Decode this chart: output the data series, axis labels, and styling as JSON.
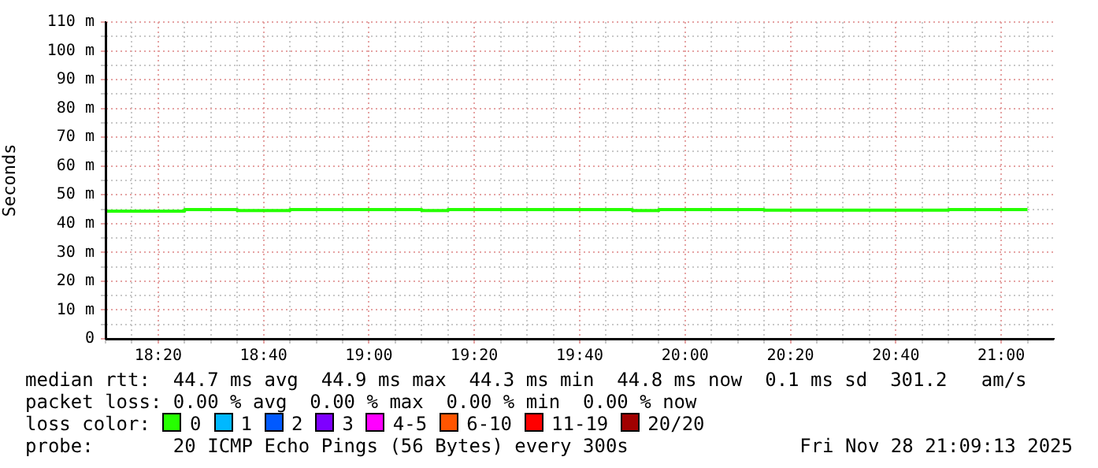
{
  "chart_data": {
    "type": "step",
    "ylabel": "Seconds",
    "legend": "bottom",
    "grid": true,
    "x": [
      18.1667,
      18.25,
      18.3333,
      18.4167,
      18.5,
      18.5833,
      18.6667,
      18.75,
      18.8333,
      18.9167,
      19,
      19.0833,
      19.1667,
      19.25,
      19.3333,
      19.4167,
      19.5,
      19.5833,
      19.6667,
      19.75,
      19.8333,
      19.9167,
      20,
      20.0833,
      20.1667,
      20.25,
      20.3333,
      20.4167,
      20.5,
      20.5833,
      20.6667,
      20.75,
      20.8333,
      20.9167,
      21,
      21.0833
    ],
    "xlim": [
      18.1667,
      21.1667
    ],
    "xticks": [
      {
        "value": 18.1667,
        "label": null
      },
      {
        "value": 18.25,
        "label": null
      },
      {
        "value": 18.3333,
        "label": "18:20"
      },
      {
        "value": 18.4167,
        "label": null
      },
      {
        "value": 18.5,
        "label": null
      },
      {
        "value": 18.5833,
        "label": null
      },
      {
        "value": 18.6667,
        "label": "18:40"
      },
      {
        "value": 18.75,
        "label": null
      },
      {
        "value": 18.8333,
        "label": null
      },
      {
        "value": 18.9167,
        "label": null
      },
      {
        "value": 19,
        "label": "19:00"
      },
      {
        "value": 19.0833,
        "label": null
      },
      {
        "value": 19.1667,
        "label": null
      },
      {
        "value": 19.25,
        "label": null
      },
      {
        "value": 19.3333,
        "label": "19:20"
      },
      {
        "value": 19.4167,
        "label": null
      },
      {
        "value": 19.5,
        "label": null
      },
      {
        "value": 19.5833,
        "label": null
      },
      {
        "value": 19.6667,
        "label": "19:40"
      },
      {
        "value": 19.75,
        "label": null
      },
      {
        "value": 19.8333,
        "label": null
      },
      {
        "value": 19.9167,
        "label": null
      },
      {
        "value": 20,
        "label": "20:00"
      },
      {
        "value": 20.0833,
        "label": null
      },
      {
        "value": 20.1667,
        "label": null
      },
      {
        "value": 20.25,
        "label": null
      },
      {
        "value": 20.3333,
        "label": "20:20"
      },
      {
        "value": 20.4167,
        "label": null
      },
      {
        "value": 20.5,
        "label": null
      },
      {
        "value": 20.5833,
        "label": null
      },
      {
        "value": 20.6667,
        "label": "20:40"
      },
      {
        "value": 20.75,
        "label": null
      },
      {
        "value": 20.8333,
        "label": null
      },
      {
        "value": 20.9167,
        "label": null
      },
      {
        "value": 21,
        "label": "21:00"
      },
      {
        "value": 21.0833,
        "label": null
      }
    ],
    "ylim": [
      0,
      110
    ],
    "yticks": [
      0,
      {
        "value": 5,
        "label": null
      },
      {
        "value": 10,
        "label": "10 m"
      },
      {
        "value": 15,
        "label": null
      },
      {
        "value": 20,
        "label": "20 m"
      },
      {
        "value": 25,
        "label": null
      },
      {
        "value": 30,
        "label": "30 m"
      },
      {
        "value": 35,
        "label": null
      },
      {
        "value": 40,
        "label": "40 m"
      },
      {
        "value": 45,
        "label": null
      },
      {
        "value": 50,
        "label": "50 m"
      },
      {
        "value": 55,
        "label": null
      },
      {
        "value": 60,
        "label": "60 m"
      },
      {
        "value": 65,
        "label": null
      },
      {
        "value": 70,
        "label": "70 m"
      },
      {
        "value": 75,
        "label": null
      },
      {
        "value": 80,
        "label": "80 m"
      },
      {
        "value": 85,
        "label": null
      },
      {
        "value": 90,
        "label": "90 m"
      },
      {
        "value": 95,
        "label": null
      },
      {
        "value": 100,
        "label": "100 m"
      },
      {
        "value": 105,
        "label": null
      },
      {
        "value": 110,
        "label": "110 m"
      }
    ],
    "series": [
      {
        "name": "0",
        "color": "#26ff00",
        "values": [
          44.3,
          44.3,
          44.3,
          44.3,
          44.9,
          44.9,
          44.5,
          44.5,
          44.9,
          44.9,
          44.9,
          44.9,
          44.9,
          44.5,
          44.9,
          44.9,
          44.9,
          44.9,
          44.9,
          44.9,
          44.9,
          44.5,
          44.9,
          44.9,
          44.9,
          44.9,
          44.7,
          44.7,
          44.7,
          44.7,
          44.7,
          44.7,
          44.7,
          44.9,
          44.9,
          44.9
        ]
      },
      {
        "name": "1",
        "color": "#00b8ff",
        "values": [
          null,
          null,
          null,
          null,
          null,
          null,
          null,
          null,
          null,
          null,
          null,
          null,
          null,
          null,
          null,
          null,
          null,
          null,
          null,
          null,
          null,
          null,
          null,
          null,
          null,
          null,
          null,
          null,
          null,
          null,
          null,
          null,
          null,
          null,
          null,
          null
        ]
      },
      {
        "name": "2",
        "color": "#0059ff",
        "values": [
          null,
          null,
          null,
          null,
          null,
          null,
          null,
          null,
          null,
          null,
          null,
          null,
          null,
          null,
          null,
          null,
          null,
          null,
          null,
          null,
          null,
          null,
          null,
          null,
          null,
          null,
          null,
          null,
          null,
          null,
          null,
          null,
          null,
          null,
          null,
          null
        ]
      },
      {
        "name": "3",
        "color": "#7e00ff",
        "values": [
          null,
          null,
          null,
          null,
          null,
          null,
          null,
          null,
          null,
          null,
          null,
          null,
          null,
          null,
          null,
          null,
          null,
          null,
          null,
          null,
          null,
          null,
          null,
          null,
          null,
          null,
          null,
          null,
          null,
          null,
          null,
          null,
          null,
          null,
          null,
          null
        ]
      },
      {
        "name": "4-5",
        "color": "#ff00ff",
        "values": [
          null,
          null,
          null,
          null,
          null,
          null,
          null,
          null,
          null,
          null,
          null,
          null,
          null,
          null,
          null,
          null,
          null,
          null,
          null,
          null,
          null,
          null,
          null,
          null,
          null,
          null,
          null,
          null,
          null,
          null,
          null,
          null,
          null,
          null,
          null,
          null
        ]
      },
      {
        "name": "6-10",
        "color": "#ff5500",
        "values": [
          null,
          null,
          null,
          null,
          null,
          null,
          null,
          null,
          null,
          null,
          null,
          null,
          null,
          null,
          null,
          null,
          null,
          null,
          null,
          null,
          null,
          null,
          null,
          null,
          null,
          null,
          null,
          null,
          null,
          null,
          null,
          null,
          null,
          null,
          null,
          null
        ]
      },
      {
        "name": "11-19",
        "color": "#ff0000",
        "values": [
          null,
          null,
          null,
          null,
          null,
          null,
          null,
          null,
          null,
          null,
          null,
          null,
          null,
          null,
          null,
          null,
          null,
          null,
          null,
          null,
          null,
          null,
          null,
          null,
          null,
          null,
          null,
          null,
          null,
          null,
          null,
          null,
          null,
          null,
          null,
          null
        ]
      },
      {
        "name": "20/20",
        "color": "#a10000",
        "values": [
          null,
          null,
          null,
          null,
          null,
          null,
          null,
          null,
          null,
          null,
          null,
          null,
          null,
          null,
          null,
          null,
          null,
          null,
          null,
          null,
          null,
          null,
          null,
          null,
          null,
          null,
          null,
          null,
          null,
          null,
          null,
          null,
          null,
          null,
          null,
          null
        ]
      }
    ],
    "annotations": [
      "median rtt:  44.7 ms avg  44.9 ms max  44.3 ms min  44.8 ms now  0.1 ms sd  301.2   am/s",
      "packet loss: 0.00 % avg  0.00 % max  0.00 % min  0.00 % now",
      "loss color:",
      "probe:       20 ICMP Echo Pings (56 Bytes) every 300s",
      "Fri Nov 28 21:09:13 2025"
    ]
  }
}
